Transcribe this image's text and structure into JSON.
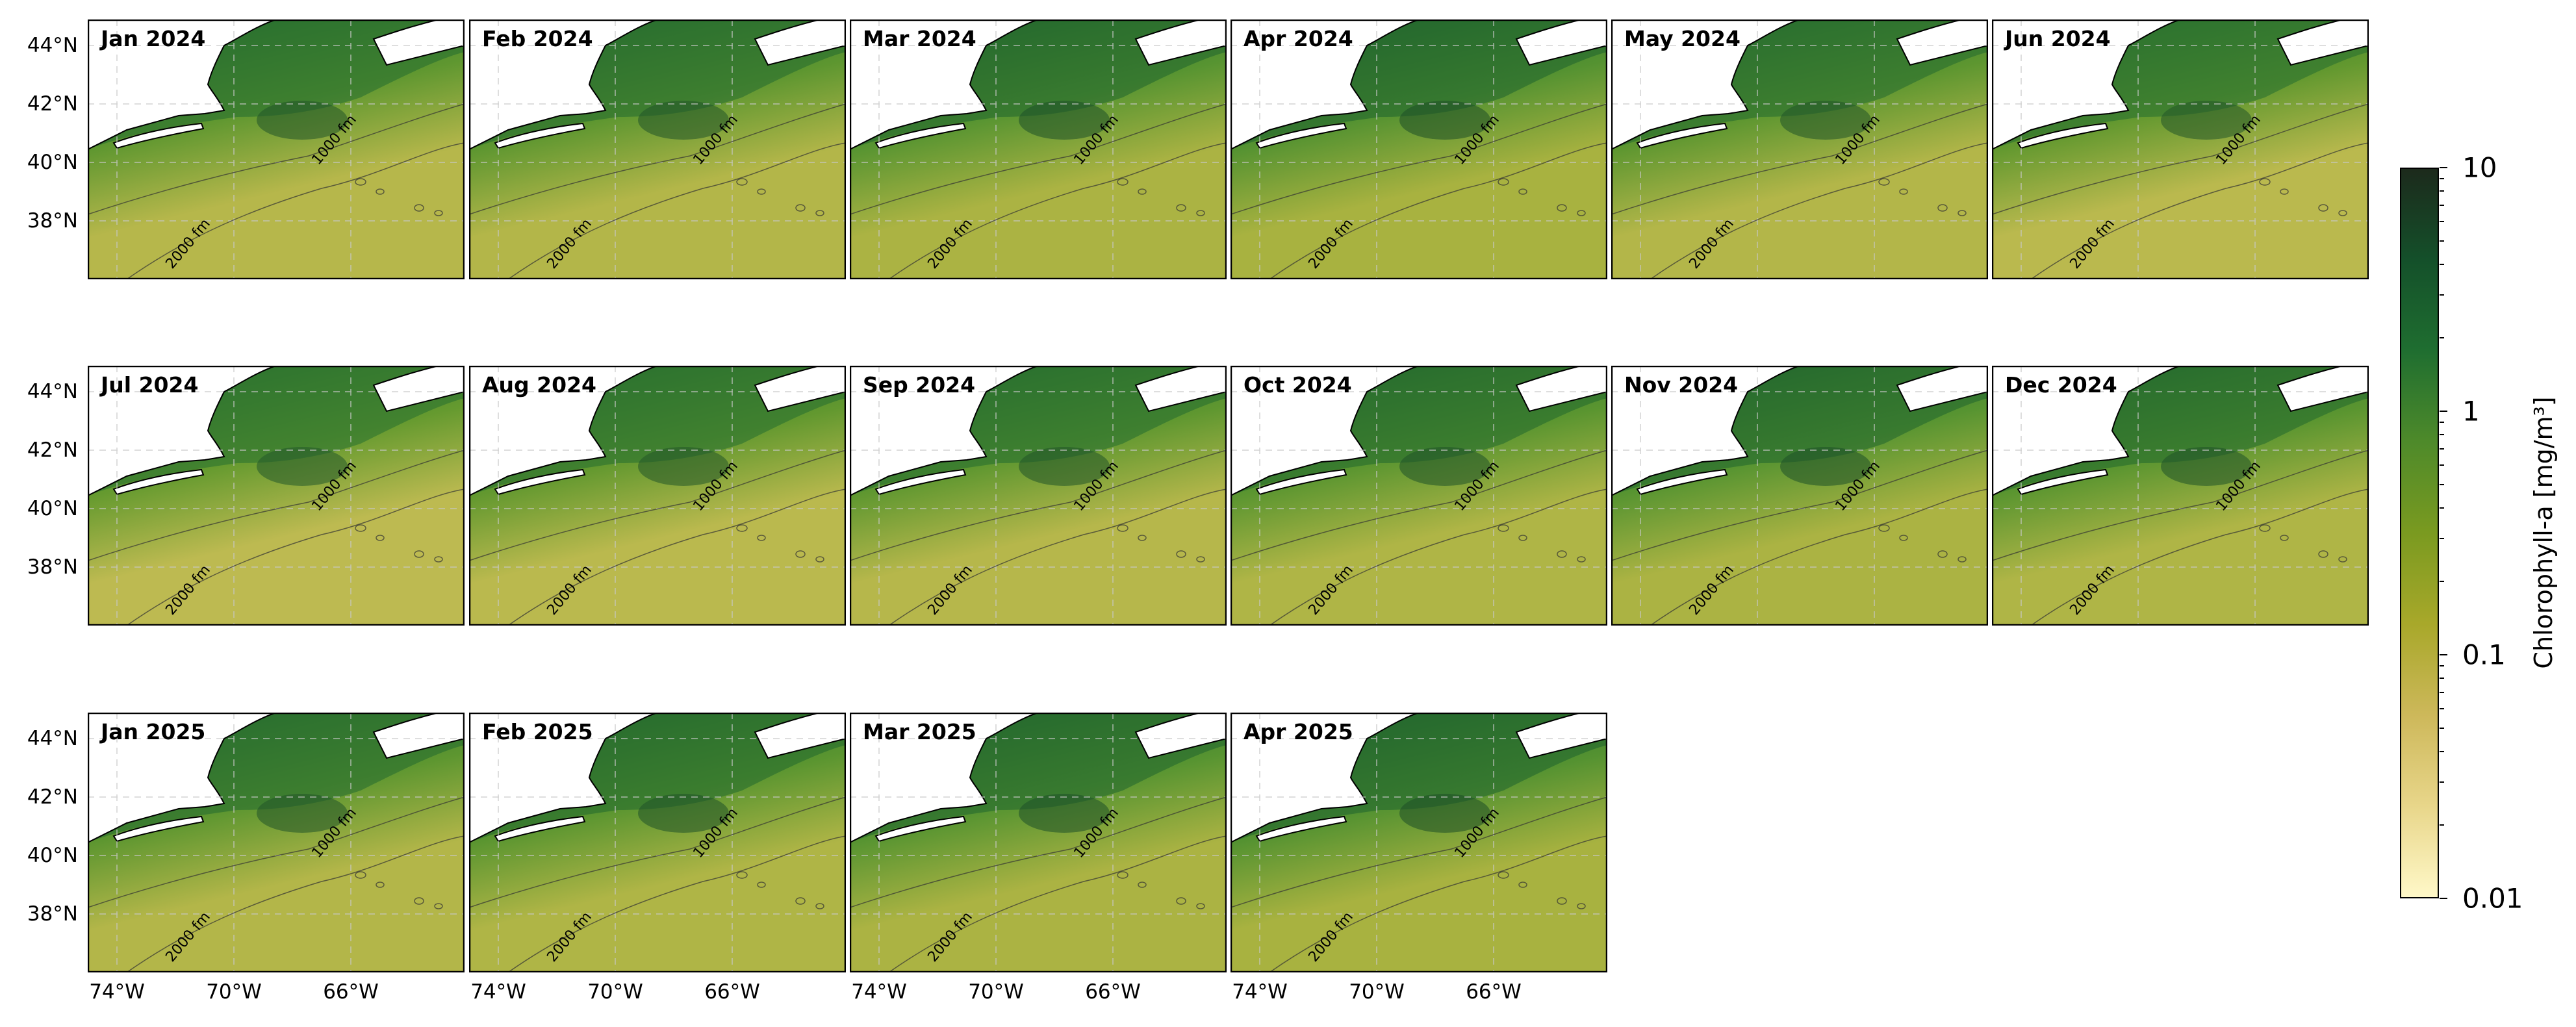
{
  "figure": {
    "panels": [
      {
        "title": "Jan 2024",
        "row": 0,
        "col": 0,
        "chl_level": 0.45
      },
      {
        "title": "Feb 2024",
        "row": 0,
        "col": 1,
        "chl_level": 0.5
      },
      {
        "title": "Mar 2024",
        "row": 0,
        "col": 2,
        "chl_level": 0.6
      },
      {
        "title": "Apr 2024",
        "row": 0,
        "col": 3,
        "chl_level": 0.65
      },
      {
        "title": "May 2024",
        "row": 0,
        "col": 4,
        "chl_level": 0.5
      },
      {
        "title": "Jun 2024",
        "row": 0,
        "col": 5,
        "chl_level": 0.4
      },
      {
        "title": "Jul 2024",
        "row": 1,
        "col": 0,
        "chl_level": 0.35
      },
      {
        "title": "Aug 2024",
        "row": 1,
        "col": 1,
        "chl_level": 0.4
      },
      {
        "title": "Sep 2024",
        "row": 1,
        "col": 2,
        "chl_level": 0.45
      },
      {
        "title": "Oct 2024",
        "row": 1,
        "col": 3,
        "chl_level": 0.55
      },
      {
        "title": "Nov 2024",
        "row": 1,
        "col": 4,
        "chl_level": 0.6
      },
      {
        "title": "Dec 2024",
        "row": 1,
        "col": 5,
        "chl_level": 0.55
      },
      {
        "title": "Jan 2025",
        "row": 2,
        "col": 0,
        "chl_level": 0.5
      },
      {
        "title": "Feb 2025",
        "row": 2,
        "col": 1,
        "chl_level": 0.55
      },
      {
        "title": "Mar 2025",
        "row": 2,
        "col": 2,
        "chl_level": 0.6
      },
      {
        "title": "Apr 2025",
        "row": 2,
        "col": 3,
        "chl_level": 0.65
      }
    ],
    "lat_ticks": [
      "44°N",
      "42°N",
      "40°N",
      "38°N"
    ],
    "lon_ticks": [
      "74°W",
      "70°W",
      "66°W"
    ],
    "contour_labels": [
      "1000 fm",
      "2000 fm"
    ],
    "colorbar": {
      "label": "Chlorophyll-a [mg/m³]",
      "ticks": [
        "10",
        "1",
        "0.1",
        "0.01"
      ],
      "scale": "log",
      "range": [
        0.01,
        10
      ],
      "colors": [
        "#fff8c8",
        "#e8d68a",
        "#cdb85a",
        "#a8a82a",
        "#7a9a20",
        "#4e8a2a",
        "#1f6e30",
        "#14502a",
        "#1c2a1c"
      ]
    },
    "colors": {
      "land": "#ffffff",
      "coast": "#000000",
      "grid": "#c8c8c8"
    }
  }
}
